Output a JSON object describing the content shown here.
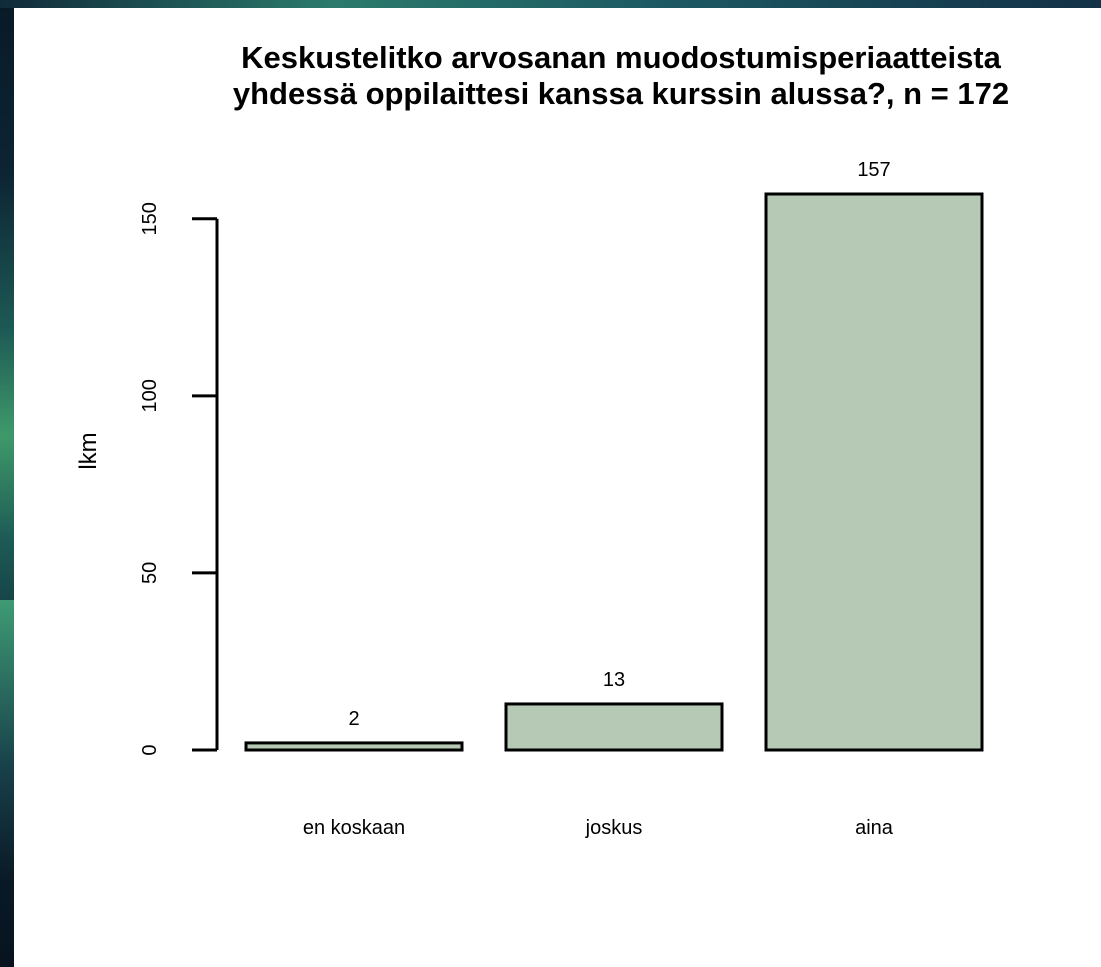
{
  "chart_data": {
    "type": "bar",
    "title_lines": [
      "Keskustelitko arvosanan muodostumisperiaatteista",
      "yhdessä oppilaittesi kanssa kurssin alussa?, n = 172"
    ],
    "xlabel": "",
    "ylabel": "lkm",
    "categories": [
      "en koskaan",
      "joskus",
      "aina"
    ],
    "values": [
      2,
      13,
      157
    ],
    "data_labels": [
      "2",
      "13",
      "157"
    ],
    "yticks": [
      0,
      50,
      100,
      150
    ],
    "ylim": [
      0,
      157
    ],
    "grid": false,
    "bar_color": "#b5c9b5",
    "bar_border_color": "#000000"
  },
  "colors": {
    "panel_background": "#ffffff",
    "page_background": "#0c2433"
  }
}
